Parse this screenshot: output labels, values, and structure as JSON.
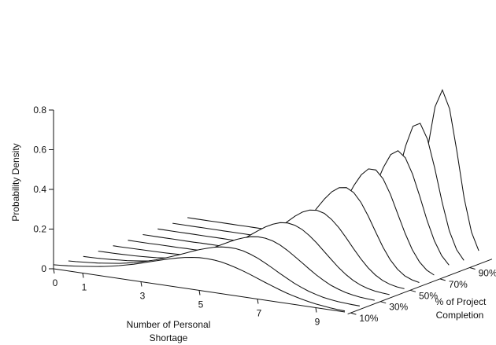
{
  "chart_data": {
    "type": "line",
    "style": "3d-waterfall",
    "title": "",
    "ylabel": "Probability Density",
    "xlabel": "Number of Personal Shortage",
    "zlabel": "% of Project Completion",
    "ylim": [
      0,
      0.8
    ],
    "xlim": [
      0,
      10
    ],
    "y_ticks": [
      "0",
      "0.2",
      "0.4",
      "0.6",
      "0.8"
    ],
    "x_ticks": [
      "0",
      "1",
      "3",
      "5",
      "7",
      "9"
    ],
    "z_ticks": [
      "10%",
      "30%",
      "50%",
      "70%",
      "90%"
    ],
    "z_values": [
      10,
      20,
      30,
      40,
      50,
      60,
      70,
      80,
      90,
      100
    ],
    "x": [
      0,
      0.25,
      0.5,
      0.75,
      1,
      1.25,
      1.5,
      1.75,
      2,
      2.25,
      2.5,
      2.75,
      3,
      3.25,
      3.5,
      3.75,
      4,
      4.25,
      4.5,
      4.75,
      5,
      5.25,
      5.5,
      5.75,
      6,
      6.25,
      6.5,
      6.75,
      7,
      7.25,
      7.5,
      7.75,
      8,
      8.25,
      8.5,
      8.75,
      9,
      9.25,
      9.5,
      9.75,
      10
    ],
    "series": [
      {
        "values": [
          0.02,
          0.023,
          0.026,
          0.03,
          0.034,
          0.039,
          0.044,
          0.05,
          0.057,
          0.065,
          0.074,
          0.083,
          0.094,
          0.105,
          0.116,
          0.127,
          0.137,
          0.147,
          0.155,
          0.161,
          0.165,
          0.166,
          0.164,
          0.16,
          0.152,
          0.142,
          0.131,
          0.118,
          0.104,
          0.09,
          0.077,
          0.064,
          0.052,
          0.042,
          0.033,
          0.025,
          0.019,
          0.014,
          0.01,
          0.007,
          0.005
        ]
      },
      {
        "values": [
          0.011,
          0.013,
          0.016,
          0.019,
          0.022,
          0.027,
          0.032,
          0.037,
          0.044,
          0.052,
          0.061,
          0.071,
          0.082,
          0.094,
          0.108,
          0.122,
          0.137,
          0.152,
          0.166,
          0.178,
          0.189,
          0.196,
          0.199,
          0.198,
          0.192,
          0.181,
          0.166,
          0.148,
          0.128,
          0.107,
          0.087,
          0.068,
          0.052,
          0.038,
          0.027,
          0.018,
          0.012,
          0.008,
          0.005,
          0.003,
          0.002
        ]
      },
      {
        "values": [
          0.005,
          0.006,
          0.007,
          0.009,
          0.011,
          0.014,
          0.017,
          0.021,
          0.026,
          0.032,
          0.039,
          0.047,
          0.057,
          0.068,
          0.081,
          0.096,
          0.112,
          0.13,
          0.149,
          0.168,
          0.187,
          0.205,
          0.219,
          0.23,
          0.235,
          0.233,
          0.225,
          0.21,
          0.189,
          0.164,
          0.138,
          0.111,
          0.086,
          0.064,
          0.045,
          0.031,
          0.02,
          0.012,
          0.007,
          0.004,
          0.002
        ]
      },
      {
        "values": [
          0.003,
          0.004,
          0.004,
          0.005,
          0.006,
          0.007,
          0.009,
          0.011,
          0.014,
          0.018,
          0.022,
          0.028,
          0.035,
          0.044,
          0.055,
          0.068,
          0.084,
          0.103,
          0.124,
          0.148,
          0.174,
          0.201,
          0.227,
          0.251,
          0.27,
          0.283,
          0.287,
          0.281,
          0.265,
          0.24,
          0.208,
          0.172,
          0.136,
          0.101,
          0.071,
          0.047,
          0.029,
          0.017,
          0.009,
          0.005,
          0.002
        ]
      },
      {
        "values": [
          0.002,
          0.002,
          0.002,
          0.003,
          0.003,
          0.004,
          0.004,
          0.005,
          0.006,
          0.008,
          0.01,
          0.013,
          0.016,
          0.021,
          0.027,
          0.035,
          0.046,
          0.06,
          0.077,
          0.098,
          0.124,
          0.154,
          0.187,
          0.222,
          0.256,
          0.288,
          0.313,
          0.329,
          0.333,
          0.323,
          0.298,
          0.262,
          0.217,
          0.168,
          0.122,
          0.082,
          0.051,
          0.029,
          0.015,
          0.007,
          0.003
        ]
      },
      {
        "values": [
          0.001,
          0.001,
          0.001,
          0.001,
          0.002,
          0.002,
          0.002,
          0.002,
          0.003,
          0.003,
          0.004,
          0.005,
          0.006,
          0.008,
          0.01,
          0.013,
          0.017,
          0.024,
          0.033,
          0.046,
          0.064,
          0.088,
          0.119,
          0.157,
          0.203,
          0.254,
          0.307,
          0.357,
          0.398,
          0.424,
          0.43,
          0.41,
          0.366,
          0.302,
          0.229,
          0.158,
          0.1,
          0.057,
          0.029,
          0.014,
          0.006
        ]
      },
      {
        "values": [
          0.001,
          0.001,
          0.001,
          0.001,
          0.001,
          0.001,
          0.001,
          0.001,
          0.002,
          0.002,
          0.002,
          0.002,
          0.003,
          0.003,
          0.004,
          0.005,
          0.006,
          0.008,
          0.011,
          0.015,
          0.021,
          0.03,
          0.045,
          0.066,
          0.097,
          0.139,
          0.195,
          0.262,
          0.335,
          0.407,
          0.466,
          0.501,
          0.501,
          0.462,
          0.389,
          0.297,
          0.205,
          0.127,
          0.07,
          0.034,
          0.015
        ]
      },
      {
        "values": [
          0.001,
          0.001,
          0.001,
          0.001,
          0.001,
          0.001,
          0.001,
          0.001,
          0.001,
          0.001,
          0.001,
          0.001,
          0.001,
          0.001,
          0.002,
          0.002,
          0.002,
          0.003,
          0.003,
          0.004,
          0.005,
          0.007,
          0.011,
          0.017,
          0.028,
          0.047,
          0.08,
          0.13,
          0.2,
          0.29,
          0.39,
          0.48,
          0.55,
          0.575,
          0.545,
          0.468,
          0.36,
          0.245,
          0.148,
          0.079,
          0.037
        ]
      },
      {
        "values": [
          0.001,
          0.001,
          0.001,
          0.001,
          0.001,
          0.001,
          0.001,
          0.001,
          0.001,
          0.001,
          0.001,
          0.001,
          0.001,
          0.001,
          0.001,
          0.001,
          0.001,
          0.001,
          0.001,
          0.002,
          0.002,
          0.002,
          0.003,
          0.004,
          0.007,
          0.012,
          0.023,
          0.045,
          0.088,
          0.163,
          0.274,
          0.42,
          0.565,
          0.67,
          0.69,
          0.615,
          0.475,
          0.31,
          0.17,
          0.08,
          0.032
        ]
      },
      {
        "values": [
          0.001,
          0.001,
          0.001,
          0.001,
          0.001,
          0.001,
          0.001,
          0.001,
          0.001,
          0.001,
          0.001,
          0.001,
          0.001,
          0.001,
          0.001,
          0.001,
          0.001,
          0.001,
          0.001,
          0.001,
          0.001,
          0.001,
          0.001,
          0.002,
          0.002,
          0.003,
          0.005,
          0.009,
          0.019,
          0.04,
          0.085,
          0.172,
          0.325,
          0.535,
          0.745,
          0.835,
          0.745,
          0.535,
          0.305,
          0.14,
          0.052
        ]
      }
    ]
  }
}
